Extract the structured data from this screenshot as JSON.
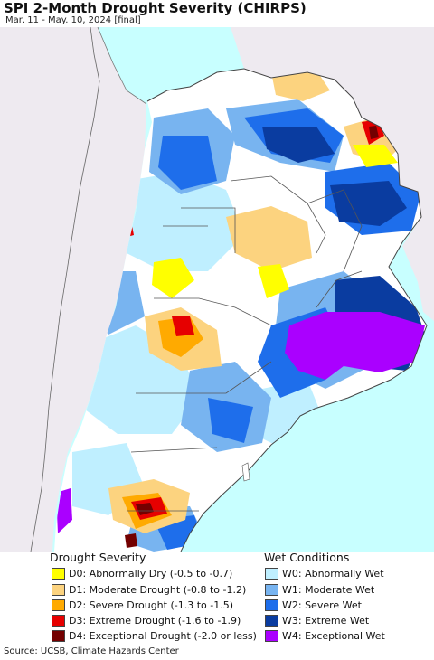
{
  "title": "SPI 2-Month Drought Severity (CHIRPS)",
  "subtitle": "Mar. 11 - May. 10, 2024 [final]",
  "legend": {
    "drought_title": "Drought Severity",
    "wet_title": "Wet Conditions",
    "drought_items": [
      {
        "label": "D0: Abnormally Dry (-0.5 to -0.7)",
        "color": "#ffff00"
      },
      {
        "label": "D1: Moderate Drought (-0.8 to -1.2)",
        "color": "#fcd37f"
      },
      {
        "label": "D2: Severe Drought (-1.3 to -1.5)",
        "color": "#ffaa00"
      },
      {
        "label": "D3: Extreme Drought (-1.6 to -1.9)",
        "color": "#e60000"
      },
      {
        "label": "D4: Exceptional Drought (-2.0 or less)",
        "color": "#730000"
      }
    ],
    "wet_items": [
      {
        "label": "W0: Abnormally Wet",
        "color": "#bfefff"
      },
      {
        "label": "W1: Moderate Wet",
        "color": "#78b4f0"
      },
      {
        "label": "W2: Severe Wet",
        "color": "#1e6eeb"
      },
      {
        "label": "W3: Extreme Wet",
        "color": "#0a3ca0"
      },
      {
        "label": "W4: Exceptional Wet",
        "color": "#aa00ff"
      }
    ]
  },
  "colors": {
    "ocean": "#c8ffff",
    "neighbor_land": "#eeeaf0",
    "normal_land": "#ffffff",
    "border": "#555555"
  },
  "source": "Source: UCSB, Climate Hazards Center"
}
